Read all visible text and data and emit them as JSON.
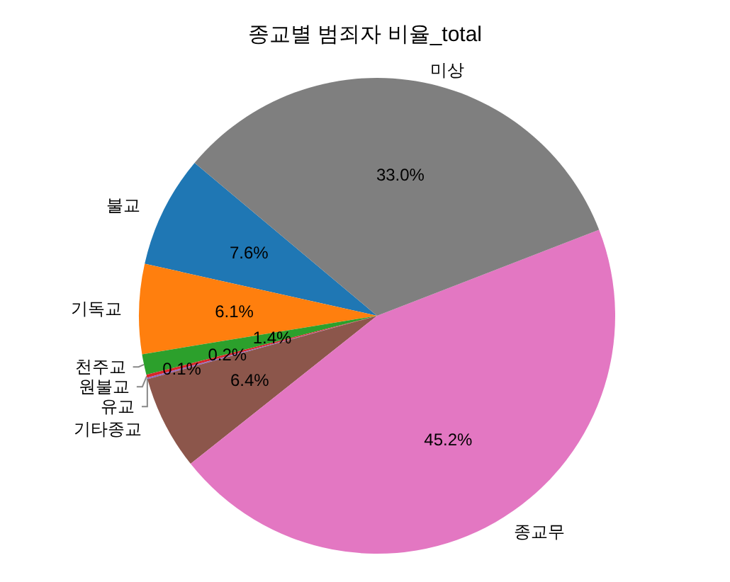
{
  "chart_data": {
    "type": "pie",
    "title": "종교별 범죄자 비율_total",
    "categories": [
      "불교",
      "기독교",
      "천주교",
      "원불교",
      "유교",
      "기타종교",
      "종교무",
      "미상"
    ],
    "values": [
      7.6,
      6.1,
      1.4,
      0.2,
      0.1,
      6.4,
      45.2,
      33.0
    ],
    "colors": [
      "#1f77b4",
      "#ff7f0e",
      "#2ca02c",
      "#d62728",
      "#9467bd",
      "#8c564b",
      "#e377c2",
      "#7f7f7f"
    ],
    "value_labels": [
      "7.6%",
      "6.1%",
      "1.4%",
      "0.2%",
      "0.1%",
      "6.4%",
      "45.2%",
      "33.0%"
    ],
    "legend": false
  }
}
